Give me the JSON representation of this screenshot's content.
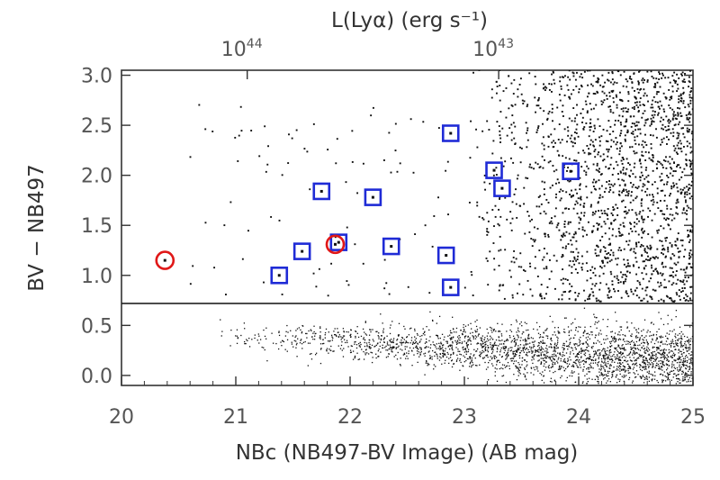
{
  "chart_data": {
    "type": "scatter",
    "title": "",
    "xlabel": "NBc (NB497-BV Image) (AB mag)",
    "ylabel": "BV − NB497",
    "top_axis_label": "L(Lyα) (erg s⁻¹)",
    "xlim": [
      20,
      25
    ],
    "ylim": [
      -0.1,
      3.05
    ],
    "x_ticks": [
      20,
      21,
      22,
      23,
      24,
      25
    ],
    "x_tick_labels": [
      "20",
      "21",
      "22",
      "23",
      "24",
      "25"
    ],
    "y_ticks": [
      0.0,
      0.5,
      1.0,
      1.5,
      2.0,
      2.5,
      3.0
    ],
    "y_tick_labels": [
      "0.0",
      "0.5",
      "1.0",
      "1.5",
      "2.0",
      "2.5",
      "3.0"
    ],
    "top_ticks": [
      {
        "x": 21.1,
        "base": "10",
        "exp": "44"
      },
      {
        "x": 23.3,
        "base": "10",
        "exp": "43"
      }
    ],
    "selection_cut_y": 0.72,
    "series": [
      {
        "marker": "blue-square",
        "color": "#1f2bd6",
        "points": [
          {
            "x": 21.38,
            "y": 1.0
          },
          {
            "x": 21.58,
            "y": 1.24
          },
          {
            "x": 21.75,
            "y": 1.84
          },
          {
            "x": 21.9,
            "y": 1.33
          },
          {
            "x": 22.2,
            "y": 1.78
          },
          {
            "x": 22.36,
            "y": 1.29
          },
          {
            "x": 22.84,
            "y": 1.2
          },
          {
            "x": 22.88,
            "y": 2.42
          },
          {
            "x": 22.88,
            "y": 0.88
          },
          {
            "x": 23.26,
            "y": 2.05
          },
          {
            "x": 23.33,
            "y": 1.87
          },
          {
            "x": 23.93,
            "y": 2.04
          }
        ]
      },
      {
        "marker": "red-circle",
        "color": "#e01818",
        "points": [
          {
            "x": 20.38,
            "y": 1.15
          },
          {
            "x": 21.87,
            "y": 1.31
          }
        ]
      }
    ],
    "background_population": "dense small black points, concentrated at faint magnitudes (x > 23) above the cut and along BV-NB497 ~ 0.0-0.4 below the cut"
  }
}
